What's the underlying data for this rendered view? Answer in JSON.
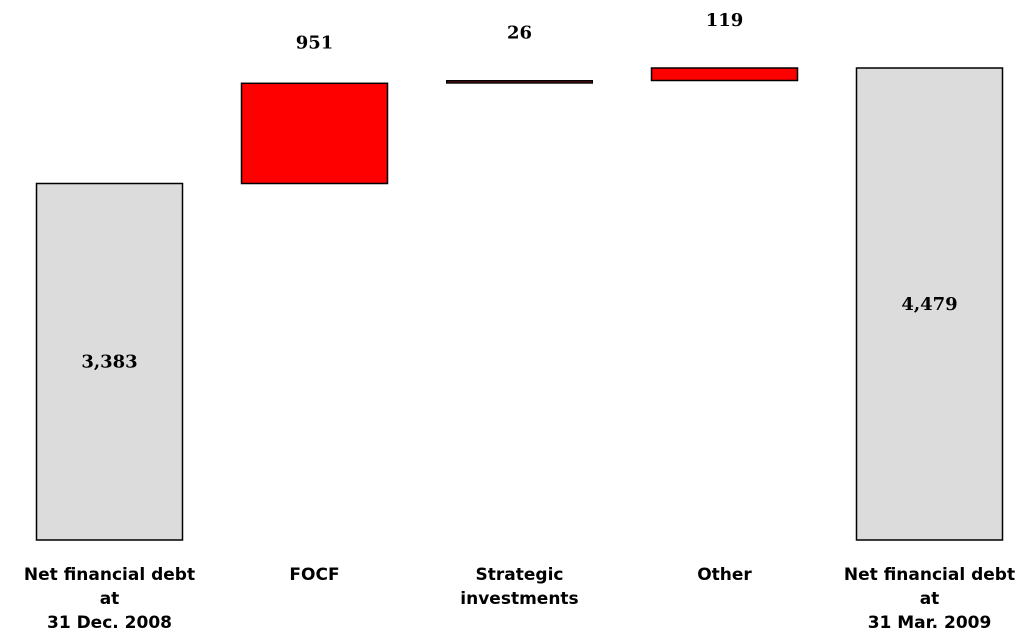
{
  "chart_data": {
    "type": "bar",
    "subtype": "waterfall",
    "categories": [
      [
        "Net financial debt",
        "at",
        "31 Dec. 2008"
      ],
      [
        "FOCF"
      ],
      [
        "Strategic",
        "investments"
      ],
      [
        "Other"
      ],
      [
        "Net financial debt",
        "at",
        "31 Mar. 2009"
      ]
    ],
    "values": [
      3383,
      951,
      26,
      119,
      4479
    ],
    "labels": [
      "3,383",
      "951",
      "26",
      "119",
      "4,479"
    ],
    "kinds": [
      "total",
      "increase",
      "increase",
      "increase",
      "total"
    ],
    "ylim": [
      0,
      4479
    ],
    "grid": false,
    "colors": {
      "total": "#dcdcdc",
      "increase": "#ff0000",
      "strategic": "#3a0a0a",
      "stroke": "#000000"
    }
  }
}
